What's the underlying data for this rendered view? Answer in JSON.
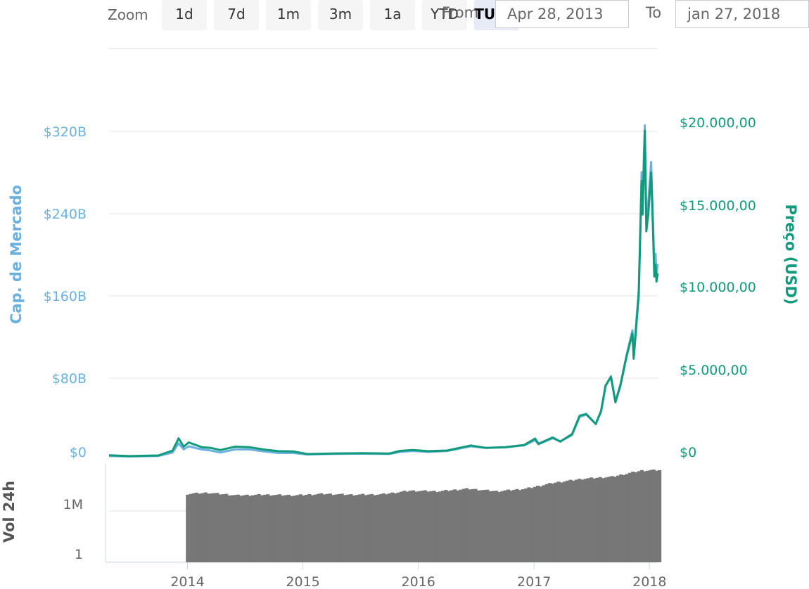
{
  "zoom": {
    "label": "Zoom",
    "buttons": [
      "1d",
      "7d",
      "1m",
      "3m",
      "1a",
      "YTD",
      "TUDO"
    ],
    "active": "TUDO"
  },
  "range": {
    "from_label": "From",
    "from_value": "Apr 28, 2013",
    "to_label": "To",
    "to_value": "jan 27, 2018"
  },
  "colors": {
    "market_cap": "#6bb1e0",
    "price": "#119a7c",
    "volume": "#777777",
    "grid": "#e6e6e6"
  },
  "chart_data": [
    {
      "type": "line",
      "x_type": "date",
      "x_ticks": [
        "2014",
        "2015",
        "2016",
        "2017",
        "2018"
      ],
      "y_left": {
        "label": "Cap. de Mercado",
        "ticks": [
          "$0",
          "$80B",
          "$160B",
          "$240B",
          "$320B"
        ],
        "range": [
          0,
          320
        ]
      },
      "y_right": {
        "label": "Preço (USD)",
        "ticks": [
          "$0",
          "$5.000,00",
          "$10.000,00",
          "$15.000,00",
          "$20.000,00"
        ],
        "range": [
          0,
          20000
        ]
      },
      "grid": true,
      "series": [
        {
          "name": "Cap. de Mercado",
          "axis": "left",
          "unit": "billion USD",
          "points": [
            [
              "2013-04-28",
              1.5
            ],
            [
              "2013-07-01",
              1.0
            ],
            [
              "2013-10-01",
              1.5
            ],
            [
              "2013-11-15",
              5
            ],
            [
              "2013-12-04",
              14
            ],
            [
              "2013-12-20",
              8
            ],
            [
              "2014-01-05",
              11
            ],
            [
              "2014-02-15",
              8
            ],
            [
              "2014-03-15",
              7
            ],
            [
              "2014-04-15",
              5
            ],
            [
              "2014-06-01",
              8
            ],
            [
              "2014-07-15",
              8
            ],
            [
              "2014-09-01",
              6
            ],
            [
              "2014-10-15",
              4.5
            ],
            [
              "2014-12-01",
              4.5
            ],
            [
              "2015-01-15",
              3
            ],
            [
              "2015-04-01",
              3.5
            ],
            [
              "2015-07-01",
              3.8
            ],
            [
              "2015-10-01",
              3.5
            ],
            [
              "2015-11-04",
              5.5
            ],
            [
              "2015-12-15",
              6.5
            ],
            [
              "2016-02-01",
              5.5
            ],
            [
              "2016-04-01",
              6.5
            ],
            [
              "2016-06-15",
              11
            ],
            [
              "2016-08-01",
              9.5
            ],
            [
              "2016-10-01",
              10
            ],
            [
              "2016-12-01",
              12
            ],
            [
              "2017-01-04",
              17
            ],
            [
              "2017-01-15",
              13
            ],
            [
              "2017-03-01",
              19
            ],
            [
              "2017-03-25",
              16
            ],
            [
              "2017-05-01",
              22
            ],
            [
              "2017-05-25",
              40
            ],
            [
              "2017-06-15",
              42
            ],
            [
              "2017-07-15",
              33
            ],
            [
              "2017-08-01",
              45
            ],
            [
              "2017-08-15",
              70
            ],
            [
              "2017-09-01",
              80
            ],
            [
              "2017-09-15",
              55
            ],
            [
              "2017-10-01",
              72
            ],
            [
              "2017-10-20",
              100
            ],
            [
              "2017-11-08",
              125
            ],
            [
              "2017-11-12",
              100
            ],
            [
              "2017-11-28",
              165
            ],
            [
              "2017-12-07",
              280
            ],
            [
              "2017-12-10",
              250
            ],
            [
              "2017-12-17",
              326
            ],
            [
              "2017-12-22",
              230
            ],
            [
              "2017-12-28",
              250
            ],
            [
              "2018-01-06",
              290
            ],
            [
              "2018-01-12",
              230
            ],
            [
              "2018-01-16",
              190
            ],
            [
              "2018-01-20",
              200
            ],
            [
              "2018-01-23",
              180
            ],
            [
              "2018-01-27",
              190
            ]
          ]
        },
        {
          "name": "Preço (USD)",
          "axis": "right",
          "unit": "USD",
          "points": [
            [
              "2013-04-28",
              135
            ],
            [
              "2013-07-01",
              90
            ],
            [
              "2013-10-01",
              125
            ],
            [
              "2013-11-15",
              420
            ],
            [
              "2013-12-04",
              1150
            ],
            [
              "2013-12-20",
              650
            ],
            [
              "2014-01-05",
              900
            ],
            [
              "2014-02-15",
              620
            ],
            [
              "2014-03-15",
              580
            ],
            [
              "2014-04-15",
              450
            ],
            [
              "2014-06-01",
              650
            ],
            [
              "2014-07-15",
              620
            ],
            [
              "2014-09-01",
              480
            ],
            [
              "2014-10-15",
              380
            ],
            [
              "2014-12-01",
              370
            ],
            [
              "2015-01-15",
              210
            ],
            [
              "2015-04-01",
              240
            ],
            [
              "2015-07-01",
              260
            ],
            [
              "2015-10-01",
              240
            ],
            [
              "2015-11-04",
              400
            ],
            [
              "2015-12-15",
              450
            ],
            [
              "2016-02-01",
              380
            ],
            [
              "2016-04-01",
              420
            ],
            [
              "2016-06-15",
              720
            ],
            [
              "2016-08-01",
              580
            ],
            [
              "2016-10-01",
              620
            ],
            [
              "2016-12-01",
              750
            ],
            [
              "2017-01-04",
              1130
            ],
            [
              "2017-01-15",
              820
            ],
            [
              "2017-03-01",
              1200
            ],
            [
              "2017-03-25",
              950
            ],
            [
              "2017-05-01",
              1400
            ],
            [
              "2017-05-25",
              2500
            ],
            [
              "2017-06-15",
              2600
            ],
            [
              "2017-07-15",
              2000
            ],
            [
              "2017-08-01",
              2800
            ],
            [
              "2017-08-15",
              4300
            ],
            [
              "2017-09-01",
              4800
            ],
            [
              "2017-09-15",
              3300
            ],
            [
              "2017-10-01",
              4300
            ],
            [
              "2017-10-20",
              6000
            ],
            [
              "2017-11-08",
              7400
            ],
            [
              "2017-11-12",
              5900
            ],
            [
              "2017-11-28",
              9700
            ],
            [
              "2017-12-07",
              16500
            ],
            [
              "2017-12-10",
              14500
            ],
            [
              "2017-12-17",
              19500
            ],
            [
              "2017-12-22",
              13500
            ],
            [
              "2017-12-28",
              14500
            ],
            [
              "2018-01-06",
              17000
            ],
            [
              "2018-01-12",
              13500
            ],
            [
              "2018-01-16",
              10800
            ],
            [
              "2018-01-20",
              11500
            ],
            [
              "2018-01-23",
              10500
            ],
            [
              "2018-01-27",
              11000
            ]
          ]
        }
      ]
    },
    {
      "type": "bar",
      "y_label": "Vol 24h",
      "y_scale": "log",
      "y_ticks": [
        "1",
        "1M"
      ],
      "x_ticks": [
        "2014",
        "2015",
        "2016",
        "2017",
        "2018"
      ],
      "series": [
        {
          "name": "Vol 24h",
          "unit": "USD",
          "points": [
            [
              "2013-12-27",
              15000000
            ],
            [
              "2014-03-01",
              20000000
            ],
            [
              "2014-06-01",
              10000000
            ],
            [
              "2014-09-01",
              12000000
            ],
            [
              "2014-12-01",
              10000000
            ],
            [
              "2015-03-01",
              15000000
            ],
            [
              "2015-06-01",
              12000000
            ],
            [
              "2015-09-01",
              13000000
            ],
            [
              "2015-12-01",
              35000000
            ],
            [
              "2016-03-01",
              30000000
            ],
            [
              "2016-06-01",
              60000000
            ],
            [
              "2016-09-01",
              30000000
            ],
            [
              "2016-12-01",
              60000000
            ],
            [
              "2017-03-01",
              300000000
            ],
            [
              "2017-06-01",
              900000000
            ],
            [
              "2017-09-01",
              1500000000
            ],
            [
              "2017-12-01",
              8000000000
            ],
            [
              "2018-01-27",
              9000000000
            ]
          ]
        }
      ]
    }
  ]
}
